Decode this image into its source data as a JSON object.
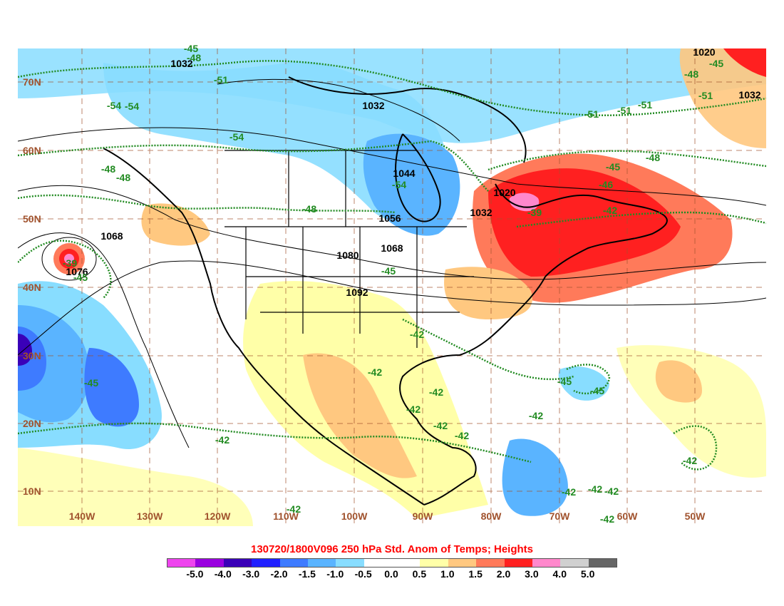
{
  "title": "130720/1800V096 250 hPa Std. Anom of Temps; Heights",
  "lat_labels": [
    "70N",
    "60N",
    "50N",
    "40N",
    "30N",
    "20N",
    "10N"
  ],
  "lon_labels": [
    "140W",
    "130W",
    "120W",
    "110W",
    "100W",
    "90W",
    "80W",
    "70W",
    "60W",
    "50W"
  ],
  "height_labels": [
    "1032",
    "1032",
    "1020",
    "1032",
    "1044",
    "1020",
    "1032",
    "1056",
    "1068",
    "1068",
    "1080",
    "1076",
    "1092"
  ],
  "temp_labels": [
    "-45",
    "-48",
    "-51",
    "-54",
    "-54",
    "-54",
    "-51",
    "-51",
    "-51",
    "-51",
    "-45",
    "-48",
    "-48",
    "-48",
    "-48",
    "-54",
    "-45",
    "-46",
    "-42",
    "-39",
    "-48",
    "-39",
    "-45",
    "-45",
    "-42",
    "-42",
    "-42",
    "-42",
    "-42",
    "-42",
    "-45",
    "-45",
    "-45",
    "-42",
    "-42",
    "-42",
    "-42",
    "-42",
    "-42",
    "-42",
    "-42"
  ],
  "legend": {
    "labels": [
      "-5.0",
      "-4.0",
      "-3.0",
      "-2.0",
      "-1.5",
      "-1.0",
      "-0.5",
      "0.0",
      "0.5",
      "1.0",
      "1.5",
      "2.0",
      "3.0",
      "4.0",
      "5.0"
    ],
    "colors": [
      "#ee44ee",
      "#9a00e0",
      "#3a00b8",
      "#2020ff",
      "#3e7bff",
      "#5ab4ff",
      "#88ddff",
      "#ffffff",
      "#ffffff",
      "#ffffa8",
      "#ffc880",
      "#ff7a5a",
      "#ff2020",
      "#ff88cc",
      "#d0d0d0",
      "#666666"
    ]
  },
  "colors": {
    "lat_lon_label": "#a0522d",
    "temp_contour": "#228b22",
    "height_contour": "#000000",
    "title": "#ff0000",
    "grid": "#a0522d"
  }
}
